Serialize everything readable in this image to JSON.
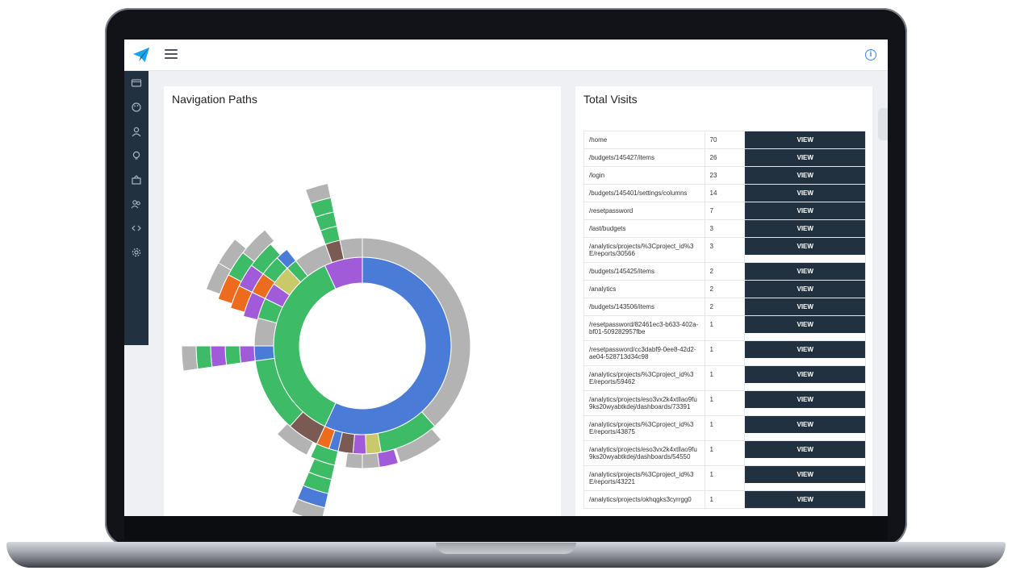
{
  "panels": {
    "navigation_title": "Navigation Paths",
    "visits_title": "Total Visits"
  },
  "visits": {
    "button_label": "VIEW",
    "rows": [
      {
        "path": "/home",
        "count": "70"
      },
      {
        "path": "/budgets/145427/items",
        "count": "26"
      },
      {
        "path": "/login",
        "count": "23"
      },
      {
        "path": "/budgets/145401/settings/columns",
        "count": "14"
      },
      {
        "path": "/resetpassword",
        "count": "7"
      },
      {
        "path": "/last/budgets",
        "count": "3"
      },
      {
        "path": "/analytics/projects/%3Cproject_id%3E/reports/30566",
        "count": "3"
      },
      {
        "path": "/budgets/145425/items",
        "count": "2"
      },
      {
        "path": "/analytics",
        "count": "2"
      },
      {
        "path": "/budgets/143506/items",
        "count": "2"
      },
      {
        "path": "/resetpassword/82461ec3-b633-402a-bf01-509282957fbe",
        "count": "1"
      },
      {
        "path": "/resetpassword/cc3dabf9-0ee8-42d2-ae04-528713d34c98",
        "count": "1"
      },
      {
        "path": "/analytics/projects/%3Cproject_id%3E/reports/59462",
        "count": "1"
      },
      {
        "path": "/analytics/projects/eso3vx2k4xtllao9fu9ks20wyabtkdej/dashboards/73391",
        "count": "1"
      },
      {
        "path": "/analytics/projects/%3Cproject_id%3E/reports/43875",
        "count": "1"
      },
      {
        "path": "/analytics/projects/eso3vx2k4xtllao9fu9ks20wyabtkdej/dashboards/54550",
        "count": "1"
      },
      {
        "path": "/analytics/projects/%3Cproject_id%3E/reports/43221",
        "count": "1"
      },
      {
        "path": "/analytics/projects/okhqgks3cyrrgg0",
        "count": "1"
      }
    ]
  },
  "icons": {
    "logo": "paper-plane-icon",
    "menu": "hamburger-icon",
    "info": "info-icon",
    "sidebar": [
      "wallet-icon",
      "palette-icon",
      "user-icon",
      "lightbulb-icon",
      "building-icon",
      "users-icon",
      "code-icon",
      "gear-icon"
    ]
  },
  "colors": {
    "sidebar_bg": "#22313f",
    "button_bg": "#22313f",
    "sunburst_blue": "#4a7bd6",
    "sunburst_green": "#3dbb66",
    "sunburst_gray": "#b3b3b3",
    "sunburst_purple": "#a25bd8",
    "sunburst_brown": "#7a5a52",
    "sunburst_orange": "#ec6b1d",
    "sunburst_olive": "#c9c96a"
  }
}
